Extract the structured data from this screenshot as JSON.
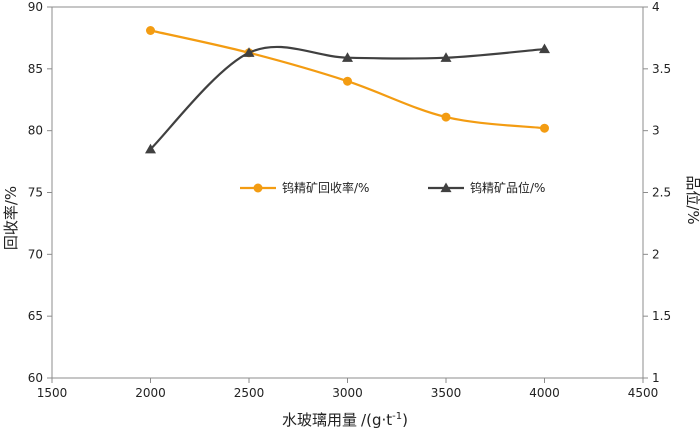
{
  "chart_data": {
    "type": "line",
    "title": "",
    "xlabel": "水玻璃用量",
    "xlabel_unit": "/(g·t",
    "xlabel_unit_exp": "-1",
    "xlabel_unit_close": ")",
    "ylabel_left": "回收率/%",
    "ylabel_right": "品位/%",
    "xlim": [
      1500,
      4500
    ],
    "ylim_left": [
      60,
      90
    ],
    "ylim_right": [
      1,
      4
    ],
    "xticks": [
      "1500",
      "2000",
      "2500",
      "3000",
      "3500",
      "4000",
      "4500"
    ],
    "yticks_left": [
      "60",
      "65",
      "70",
      "75",
      "80",
      "85",
      "90"
    ],
    "yticks_right": [
      "1",
      "1.5",
      "2",
      "2.5",
      "3",
      "3.5",
      "4"
    ],
    "grid": false,
    "legend_position": "center-right",
    "series": [
      {
        "name": "钨精矿回收率/%",
        "axis": "left",
        "marker": "circle",
        "color": "#F39C12",
        "x": [
          2000,
          2500,
          3000,
          3500,
          4000
        ],
        "y": [
          88.1,
          86.3,
          84.0,
          81.1,
          80.2
        ]
      },
      {
        "name": "钨精矿品位/%",
        "axis": "right",
        "marker": "triangle",
        "color": "#404040",
        "x": [
          2000,
          2500,
          3000,
          3500,
          4000
        ],
        "y": [
          2.85,
          3.63,
          3.59,
          3.59,
          3.66
        ]
      }
    ]
  }
}
